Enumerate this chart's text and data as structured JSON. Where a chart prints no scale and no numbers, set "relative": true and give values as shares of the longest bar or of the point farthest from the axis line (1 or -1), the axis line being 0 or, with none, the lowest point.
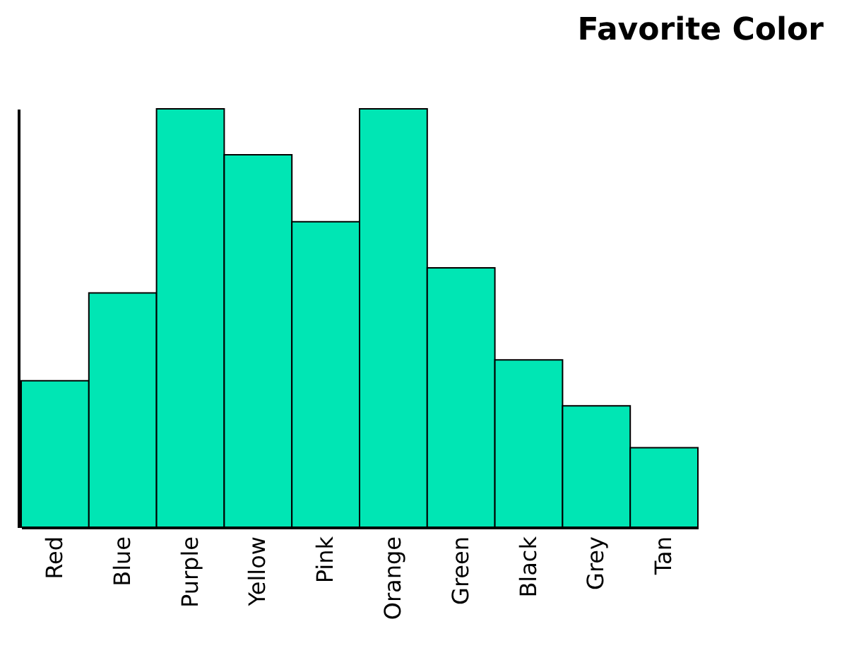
{
  "chart_data": {
    "type": "bar",
    "title": "Favorite Color",
    "relative": true,
    "color": "#00e6b4",
    "categories": [
      "Red",
      "Blue",
      "Purple",
      "Yellow",
      "Pink",
      "Orange",
      "Green",
      "Black",
      "Grey",
      "Tan"
    ],
    "values": [
      0.35,
      0.56,
      1,
      0.89,
      0.73,
      1,
      0.62,
      0.4,
      0.29,
      0.19
    ]
  }
}
